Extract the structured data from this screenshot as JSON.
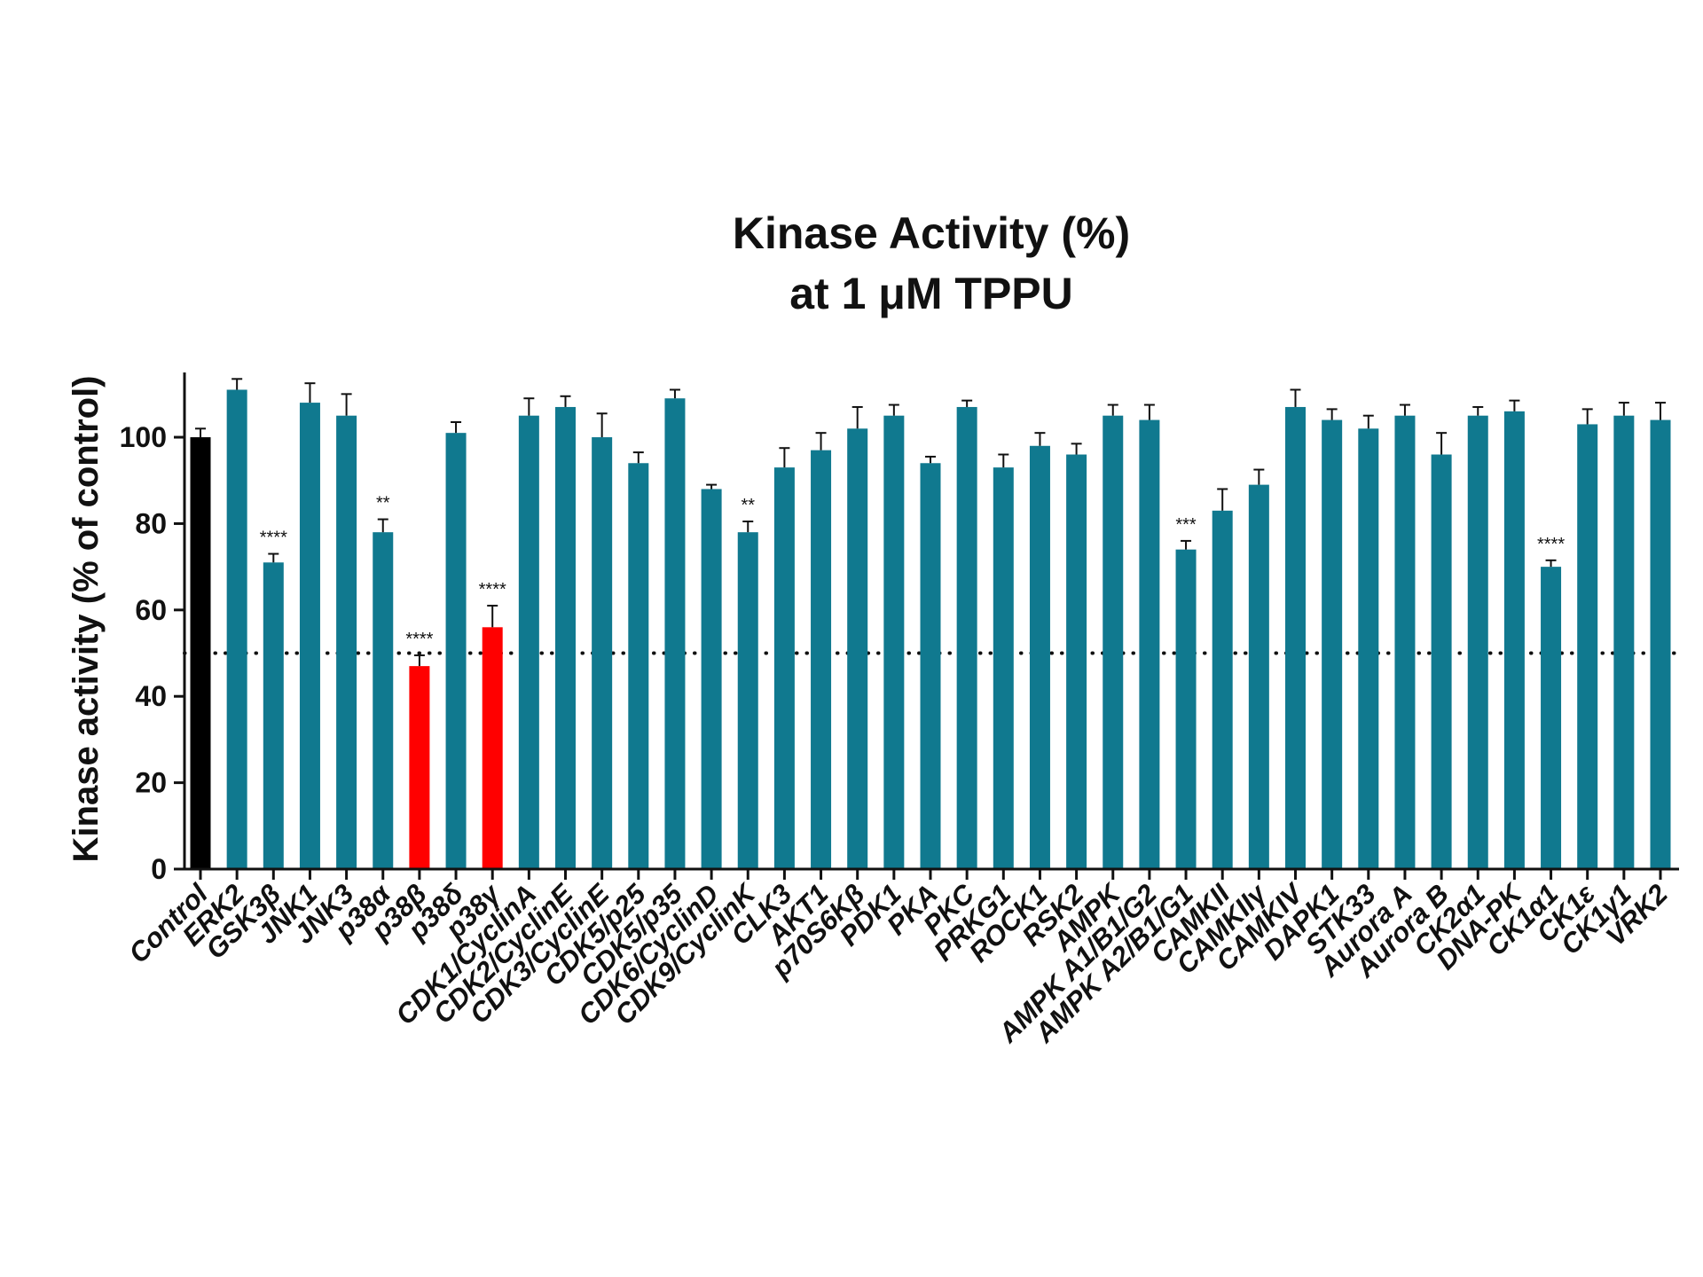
{
  "chart_data": {
    "type": "bar",
    "title": "Kinase Activity (%)",
    "subtitle": "at 1 μM TPPU",
    "ylabel": "Kinase activity (% of control)",
    "xlabel": "",
    "ylim": [
      0,
      115
    ],
    "yticks": [
      0,
      20,
      40,
      60,
      80,
      100
    ],
    "reference_line": {
      "value": 50,
      "style": "dotted"
    },
    "grid": false,
    "colors": {
      "control": "#000000",
      "default": "#10798f",
      "highlight": "#ff0000"
    },
    "categories": [
      "Control",
      "ERK2",
      "GSK3β",
      "JNK1",
      "JNK3",
      "p38α",
      "p38β",
      "p38δ",
      "p38γ",
      "CDK1/CyclinA",
      "CDK2/CyclinE",
      "CDK3/CyclinE",
      "CDK5/p25",
      "CDK5/p35",
      "CDK6/CyclinD",
      "CDK9/CyclinK",
      "CLK3",
      "AKT1",
      "p70S6Kβ",
      "PDK1",
      "PKA",
      "PKC",
      "PRKG1",
      "ROCK1",
      "RSK2",
      "AMPK",
      "AMPK A1/B1/G2",
      "AMPK A2/B1/G1",
      "CAMKII",
      "CAMKIIγ",
      "CAMKIV",
      "DAPK1",
      "STK33",
      "Aurora A",
      "Aurora B",
      "CK2α1",
      "DNA-PK",
      "CK1α1",
      "CK1ε",
      "CK1γ1",
      "VRK2"
    ],
    "values": [
      100,
      111,
      71,
      108,
      105,
      78,
      47,
      101,
      56,
      105,
      107,
      100,
      94,
      109,
      88,
      78,
      93,
      97,
      102,
      105,
      94,
      107,
      93,
      98,
      96,
      105,
      104,
      74,
      83,
      89,
      107,
      104,
      102,
      105,
      96,
      105,
      106,
      70,
      103,
      105,
      104
    ],
    "errors": [
      2,
      2.5,
      2,
      4.5,
      5,
      3,
      2.5,
      2.5,
      5,
      4,
      2.5,
      5.5,
      2.5,
      2,
      1,
      2.5,
      4.5,
      4,
      5,
      2.5,
      1.5,
      1.5,
      3,
      3,
      2.5,
      2.5,
      3.5,
      2,
      5,
      3.5,
      4,
      2.5,
      3,
      2.5,
      5,
      2,
      2.5,
      1.5,
      3.5,
      3,
      4
    ],
    "highlight": [
      "control",
      "default",
      "default",
      "default",
      "default",
      "default",
      "highlight",
      "default",
      "highlight",
      "default",
      "default",
      "default",
      "default",
      "default",
      "default",
      "default",
      "default",
      "default",
      "default",
      "default",
      "default",
      "default",
      "default",
      "default",
      "default",
      "default",
      "default",
      "default",
      "default",
      "default",
      "default",
      "default",
      "default",
      "default",
      "default",
      "default",
      "default",
      "default",
      "default",
      "default",
      "default"
    ],
    "significance": [
      "",
      "",
      "****",
      "",
      "",
      "**",
      "****",
      "",
      "****",
      "",
      "",
      "",
      "",
      "",
      "",
      "**",
      "",
      "",
      "",
      "",
      "",
      "",
      "",
      "",
      "",
      "",
      "",
      "***",
      "",
      "",
      "",
      "",
      "",
      "",
      "",
      "",
      "",
      "****",
      "",
      "",
      ""
    ]
  }
}
